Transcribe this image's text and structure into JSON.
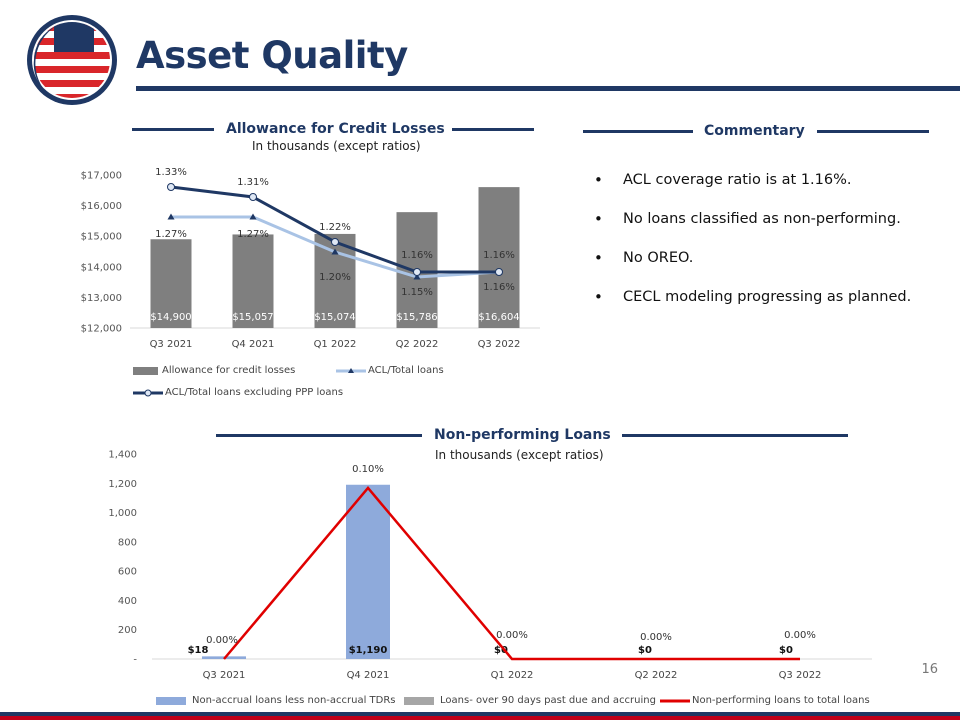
{
  "header": {
    "title": "Asset Quality",
    "page_number": "16"
  },
  "colors": {
    "navy": "#1f3864",
    "gray_bar": "#7f7f7f",
    "light_blue_line": "#a9c3e5",
    "blue_bar": "#8eaadb",
    "red_line": "#e00000",
    "gray_legend": "#a6a6a6"
  },
  "acl": {
    "title": "Allowance for Credit Losses",
    "subtitle": "In thousands (except ratios)",
    "legend": [
      "Allowance for credit losses",
      "ACL/Total loans",
      "ACL/Total loans excluding PPP loans"
    ]
  },
  "commentary": {
    "title": "Commentary",
    "bullets": [
      "ACL coverage ratio is at 1.16%.",
      "No loans classified as non-performing.",
      "No OREO.",
      "CECL modeling progressing as planned."
    ]
  },
  "npl": {
    "title": "Non-performing Loans",
    "subtitle": "In thousands (except ratios)",
    "legend": [
      "Non-accrual loans less non-accrual TDRs",
      "Loans- over 90 days past due and accruing",
      "Non-performing loans to total loans"
    ]
  },
  "chart_data": [
    {
      "type": "bar",
      "title": "Allowance for Credit Losses",
      "categories": [
        "Q3 2021",
        "Q4 2021",
        "Q1 2022",
        "Q2 2022",
        "Q3 2022"
      ],
      "ylim": [
        12000,
        17000
      ],
      "yticks": [
        "$12,000",
        "$13,000",
        "$14,000",
        "$15,000",
        "$16,000",
        "$17,000"
      ],
      "grid": false,
      "legend_position": "bottom",
      "series": [
        {
          "name": "Allowance for credit losses",
          "kind": "bar",
          "values": [
            14900,
            15057,
            15074,
            15786,
            16604
          ],
          "labels": [
            "$14,900",
            "$15,057",
            "$15,074",
            "$15,786",
            "$16,604"
          ]
        },
        {
          "name": "ACL/Total loans",
          "kind": "line",
          "values": [
            1.27,
            1.27,
            1.2,
            1.15,
            1.16
          ],
          "labels": [
            "1.27%",
            "1.27%",
            "1.20%",
            "1.15%",
            "1.16%"
          ]
        },
        {
          "name": "ACL/Total loans excluding PPP loans",
          "kind": "line",
          "values": [
            1.33,
            1.31,
            1.22,
            1.16,
            1.16
          ],
          "labels": [
            "1.33%",
            "1.31%",
            "1.22%",
            "1.16%",
            "1.16%"
          ]
        }
      ]
    },
    {
      "type": "bar",
      "title": "Non-performing Loans",
      "categories": [
        "Q3 2021",
        "Q4 2021",
        "Q1 2022",
        "Q2 2022",
        "Q3 2022"
      ],
      "ylim": [
        0,
        1400
      ],
      "yticks": [
        "-",
        "200",
        "400",
        "600",
        "800",
        "1,000",
        "1,200",
        "1,400"
      ],
      "grid": false,
      "legend_position": "bottom",
      "series": [
        {
          "name": "Non-accrual loans less non-accrual TDRs",
          "kind": "bar",
          "values": [
            18,
            1190,
            0,
            0,
            0
          ],
          "labels": [
            "$18",
            "$1,190",
            "$0",
            "$0",
            "$0"
          ]
        },
        {
          "name": "Loans- over 90 days past due and accruing",
          "kind": "bar",
          "values": [
            0,
            0,
            0,
            0,
            0
          ]
        },
        {
          "name": "Non-performing loans to total loans",
          "kind": "line",
          "values": [
            0.0,
            0.1,
            0.0,
            0.0,
            0.0
          ],
          "labels": [
            "0.00%",
            "0.10%",
            "0.00%",
            "0.00%",
            "0.00%"
          ]
        }
      ]
    }
  ]
}
